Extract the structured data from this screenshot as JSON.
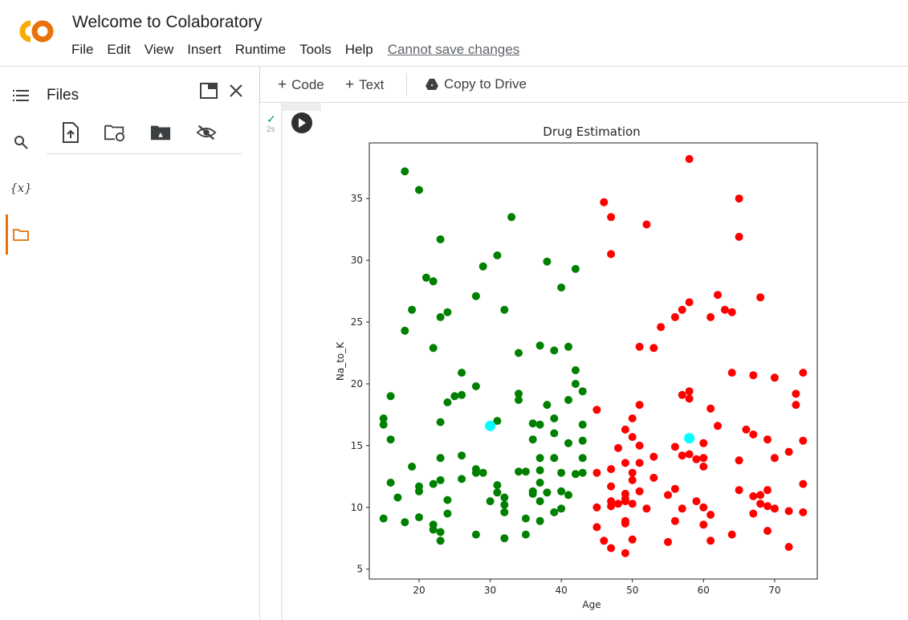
{
  "app": {
    "title": "Welcome to Colaboratory",
    "logo_text": "CO",
    "logo_color": "#f9ab00",
    "logo_color2": "#e8710a"
  },
  "menu": [
    "File",
    "Edit",
    "View",
    "Insert",
    "Runtime",
    "Tools",
    "Help"
  ],
  "save_status": "Cannot save changes",
  "rail": {
    "icons": [
      "list-icon",
      "search-icon",
      "variables-icon",
      "folder-icon"
    ],
    "variables_label": "{x}",
    "active_color": "#e8710a"
  },
  "files_panel": {
    "title": "Files",
    "actions": [
      "upload-icon",
      "refresh-folder-icon",
      "drive-icon",
      "hidden-files-icon"
    ]
  },
  "toolbar": {
    "code_label": "Code",
    "text_label": "Text",
    "copy_label": "Copy to Drive"
  },
  "cell": {
    "status": "✓",
    "exec_time": "2s"
  },
  "chart_data": {
    "type": "scatter",
    "title": "Drug Estimation",
    "xlabel": "Age",
    "ylabel": "Na_to_K",
    "xlim": [
      13,
      76
    ],
    "ylim": [
      4.2,
      39.5
    ],
    "xticks": [
      20,
      30,
      40,
      50,
      60,
      70
    ],
    "yticks": [
      5,
      10,
      15,
      20,
      25,
      30,
      35
    ],
    "grid": false,
    "series": [
      {
        "color": "#008000",
        "points": [
          [
            18,
            37.2
          ],
          [
            20,
            35.7
          ],
          [
            23,
            31.7
          ],
          [
            33,
            33.5
          ],
          [
            31,
            30.4
          ],
          [
            29,
            29.5
          ],
          [
            38,
            29.9
          ],
          [
            42,
            29.3
          ],
          [
            21,
            28.6
          ],
          [
            22,
            28.3
          ],
          [
            40,
            27.8
          ],
          [
            28,
            27.1
          ],
          [
            19,
            26.0
          ],
          [
            24,
            25.8
          ],
          [
            23,
            25.4
          ],
          [
            32,
            26.0
          ],
          [
            18,
            24.3
          ],
          [
            22,
            22.9
          ],
          [
            37,
            23.1
          ],
          [
            41,
            23.0
          ],
          [
            39,
            22.7
          ],
          [
            34,
            22.5
          ],
          [
            26,
            20.9
          ],
          [
            42,
            21.1
          ],
          [
            28,
            19.8
          ],
          [
            42,
            20.0
          ],
          [
            16,
            19.0
          ],
          [
            25,
            19.0
          ],
          [
            26,
            19.1
          ],
          [
            34,
            19.2
          ],
          [
            43,
            19.4
          ],
          [
            24,
            18.5
          ],
          [
            34,
            18.7
          ],
          [
            41,
            18.7
          ],
          [
            38,
            18.3
          ],
          [
            15,
            17.2
          ],
          [
            15,
            16.7
          ],
          [
            31,
            17.0
          ],
          [
            23,
            16.9
          ],
          [
            39,
            17.2
          ],
          [
            36,
            16.8
          ],
          [
            37,
            16.7
          ],
          [
            43,
            16.7
          ],
          [
            39,
            16.0
          ],
          [
            16,
            15.5
          ],
          [
            36,
            15.5
          ],
          [
            41,
            15.2
          ],
          [
            43,
            15.4
          ],
          [
            23,
            14.0
          ],
          [
            26,
            14.2
          ],
          [
            37,
            14.0
          ],
          [
            39,
            14.0
          ],
          [
            43,
            14.0
          ],
          [
            19,
            13.3
          ],
          [
            28,
            13.1
          ],
          [
            28,
            12.8
          ],
          [
            29,
            12.8
          ],
          [
            34,
            12.9
          ],
          [
            35,
            12.9
          ],
          [
            37,
            13.0
          ],
          [
            40,
            12.8
          ],
          [
            42,
            12.7
          ],
          [
            43,
            12.8
          ],
          [
            16,
            12.0
          ],
          [
            20,
            11.7
          ],
          [
            20,
            11.3
          ],
          [
            22,
            11.9
          ],
          [
            23,
            12.2
          ],
          [
            26,
            12.3
          ],
          [
            31,
            11.8
          ],
          [
            31,
            11.2
          ],
          [
            36,
            11.3
          ],
          [
            36,
            11.1
          ],
          [
            37,
            12.0
          ],
          [
            38,
            11.2
          ],
          [
            40,
            11.3
          ],
          [
            41,
            11.0
          ],
          [
            17,
            10.8
          ],
          [
            24,
            10.6
          ],
          [
            30,
            10.5
          ],
          [
            32,
            10.8
          ],
          [
            32,
            10.2
          ],
          [
            37,
            10.5
          ],
          [
            32,
            9.6
          ],
          [
            39,
            9.6
          ],
          [
            40,
            9.9
          ],
          [
            15,
            9.1
          ],
          [
            18,
            8.8
          ],
          [
            20,
            9.2
          ],
          [
            22,
            8.6
          ],
          [
            22,
            8.2
          ],
          [
            23,
            8.0
          ],
          [
            35,
            9.1
          ],
          [
            37,
            8.9
          ],
          [
            23,
            7.3
          ],
          [
            28,
            7.8
          ],
          [
            32,
            7.5
          ],
          [
            35,
            7.8
          ],
          [
            24,
            9.5
          ]
        ]
      },
      {
        "color": "#ff0000",
        "points": [
          [
            58,
            38.2
          ],
          [
            46,
            34.7
          ],
          [
            65,
            35.0
          ],
          [
            47,
            33.5
          ],
          [
            52,
            32.9
          ],
          [
            65,
            31.9
          ],
          [
            47,
            30.5
          ],
          [
            62,
            27.2
          ],
          [
            68,
            27.0
          ],
          [
            58,
            26.6
          ],
          [
            57,
            26.0
          ],
          [
            56,
            25.4
          ],
          [
            63,
            26.0
          ],
          [
            64,
            25.8
          ],
          [
            61,
            25.4
          ],
          [
            54,
            24.6
          ],
          [
            51,
            23.0
          ],
          [
            53,
            22.9
          ],
          [
            64,
            20.9
          ],
          [
            67,
            20.7
          ],
          [
            70,
            20.5
          ],
          [
            74,
            20.9
          ],
          [
            57,
            19.1
          ],
          [
            58,
            19.4
          ],
          [
            58,
            18.8
          ],
          [
            73,
            19.2
          ],
          [
            73,
            18.3
          ],
          [
            45,
            17.9
          ],
          [
            51,
            18.3
          ],
          [
            61,
            18.0
          ],
          [
            50,
            17.2
          ],
          [
            62,
            16.6
          ],
          [
            49,
            16.3
          ],
          [
            50,
            15.7
          ],
          [
            66,
            16.3
          ],
          [
            67,
            15.9
          ],
          [
            69,
            15.5
          ],
          [
            74,
            15.4
          ],
          [
            60,
            15.2
          ],
          [
            56,
            14.9
          ],
          [
            51,
            15.0
          ],
          [
            48,
            14.8
          ],
          [
            72,
            14.5
          ],
          [
            57,
            14.2
          ],
          [
            58,
            14.3
          ],
          [
            59,
            13.9
          ],
          [
            60,
            14.0
          ],
          [
            70,
            14.0
          ],
          [
            53,
            14.1
          ],
          [
            65,
            13.8
          ],
          [
            49,
            13.6
          ],
          [
            51,
            13.6
          ],
          [
            60,
            13.3
          ],
          [
            47,
            13.1
          ],
          [
            45,
            12.8
          ],
          [
            50,
            12.8
          ],
          [
            50,
            12.2
          ],
          [
            53,
            12.4
          ],
          [
            74,
            11.9
          ],
          [
            47,
            11.7
          ],
          [
            49,
            11.1
          ],
          [
            49,
            10.7
          ],
          [
            56,
            11.5
          ],
          [
            65,
            11.4
          ],
          [
            69,
            11.4
          ],
          [
            51,
            11.3
          ],
          [
            55,
            11.0
          ],
          [
            67,
            10.9
          ],
          [
            68,
            11.0
          ],
          [
            45,
            10.0
          ],
          [
            47,
            10.5
          ],
          [
            47,
            10.1
          ],
          [
            48,
            10.3
          ],
          [
            49,
            10.5
          ],
          [
            50,
            10.3
          ],
          [
            52,
            9.9
          ],
          [
            59,
            10.5
          ],
          [
            60,
            10.0
          ],
          [
            68,
            10.3
          ],
          [
            69,
            10.1
          ],
          [
            70,
            9.9
          ],
          [
            72,
            9.7
          ],
          [
            74,
            9.6
          ],
          [
            61,
            9.4
          ],
          [
            57,
            9.9
          ],
          [
            49,
            8.9
          ],
          [
            49,
            8.7
          ],
          [
            56,
            8.9
          ],
          [
            60,
            8.6
          ],
          [
            67,
            9.5
          ],
          [
            45,
            8.4
          ],
          [
            69,
            8.1
          ],
          [
            64,
            7.8
          ],
          [
            46,
            7.3
          ],
          [
            50,
            7.4
          ],
          [
            55,
            7.2
          ],
          [
            61,
            7.3
          ],
          [
            47,
            6.7
          ],
          [
            72,
            6.8
          ],
          [
            49,
            6.3
          ]
        ]
      },
      {
        "color": "#00ffff",
        "points": [
          [
            30,
            16.6
          ],
          [
            58,
            15.6
          ]
        ]
      }
    ]
  }
}
